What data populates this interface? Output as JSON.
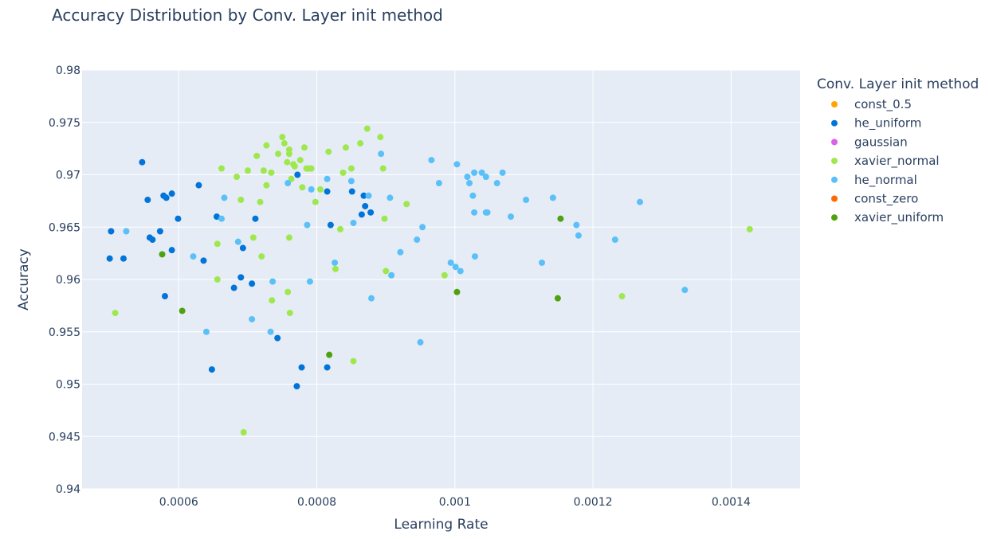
{
  "chart_data": {
    "type": "scatter",
    "title": "Accuracy Distribution by Conv. Layer init method",
    "xlabel": "Learning Rate",
    "ylabel": "Accuracy",
    "xlim": [
      0.00046,
      0.0015
    ],
    "ylim": [
      0.94,
      0.98
    ],
    "x_ticks": [
      0.0006,
      0.0008,
      0.001,
      0.0012,
      0.0014
    ],
    "x_tick_labels": [
      "0.0006",
      "0.0008",
      "0.001",
      "0.0012",
      "0.0014"
    ],
    "y_ticks": [
      0.94,
      0.945,
      0.95,
      0.955,
      0.96,
      0.965,
      0.97,
      0.975,
      0.98
    ],
    "y_tick_labels": [
      "0.94",
      "0.945",
      "0.95",
      "0.955",
      "0.96",
      "0.965",
      "0.97",
      "0.975",
      "0.98"
    ],
    "grid": true,
    "legend_title": "Conv. Layer init method",
    "legend_position": "right",
    "series": [
      {
        "name": "const_0.5",
        "color": "#FFA500",
        "points": []
      },
      {
        "name": "he_uniform",
        "color": "#0074D9",
        "points": [
          [
            0.000502,
            0.9646
          ],
          [
            0.0005,
            0.962
          ],
          [
            0.00052,
            0.962
          ],
          [
            0.000547,
            0.9712
          ],
          [
            0.000555,
            0.9676
          ],
          [
            0.000558,
            0.964
          ],
          [
            0.000562,
            0.9638
          ],
          [
            0.000573,
            0.9646
          ],
          [
            0.000578,
            0.968
          ],
          [
            0.000582,
            0.9678
          ],
          [
            0.00059,
            0.9682
          ],
          [
            0.00059,
            0.9628
          ],
          [
            0.00058,
            0.9584
          ],
          [
            0.000599,
            0.9658
          ],
          [
            0.000629,
            0.969
          ],
          [
            0.000636,
            0.9618
          ],
          [
            0.000655,
            0.966
          ],
          [
            0.000648,
            0.9514
          ],
          [
            0.00068,
            0.9592
          ],
          [
            0.00069,
            0.9602
          ],
          [
            0.000693,
            0.963
          ],
          [
            0.000706,
            0.9596
          ],
          [
            0.000711,
            0.9658
          ],
          [
            0.000743,
            0.9544
          ],
          [
            0.000772,
            0.97
          ],
          [
            0.000771,
            0.9498
          ],
          [
            0.000778,
            0.9516
          ],
          [
            0.000815,
            0.9684
          ],
          [
            0.000815,
            0.9516
          ],
          [
            0.00082,
            0.9652
          ],
          [
            0.000851,
            0.9684
          ],
          [
            0.000865,
            0.9662
          ],
          [
            0.000868,
            0.968
          ],
          [
            0.00087,
            0.967
          ],
          [
            0.000878,
            0.9664
          ]
        ]
      },
      {
        "name": "gaussian",
        "color": "#D962E8",
        "points": []
      },
      {
        "name": "xavier_normal",
        "color": "#9EE84E",
        "points": [
          [
            0.000508,
            0.9568
          ],
          [
            0.000656,
            0.9634
          ],
          [
            0.000656,
            0.96
          ],
          [
            0.000662,
            0.9706
          ],
          [
            0.000684,
            0.9698
          ],
          [
            0.00069,
            0.9676
          ],
          [
            0.000694,
            0.9454
          ],
          [
            0.0007,
            0.9704
          ],
          [
            0.000708,
            0.964
          ],
          [
            0.000713,
            0.9718
          ],
          [
            0.000718,
            0.9674
          ],
          [
            0.00072,
            0.9622
          ],
          [
            0.000723,
            0.9704
          ],
          [
            0.000727,
            0.9728
          ],
          [
            0.000727,
            0.969
          ],
          [
            0.000734,
            0.9702
          ],
          [
            0.000735,
            0.958
          ],
          [
            0.000744,
            0.972
          ],
          [
            0.00075,
            0.9736
          ],
          [
            0.000753,
            0.973
          ],
          [
            0.000757,
            0.9712
          ],
          [
            0.000758,
            0.9588
          ],
          [
            0.00076,
            0.972
          ],
          [
            0.00076,
            0.9724
          ],
          [
            0.00076,
            0.964
          ],
          [
            0.000761,
            0.9568
          ],
          [
            0.000763,
            0.9696
          ],
          [
            0.000766,
            0.971
          ],
          [
            0.000768,
            0.9708
          ],
          [
            0.000776,
            0.9714
          ],
          [
            0.000779,
            0.9688
          ],
          [
            0.000782,
            0.9726
          ],
          [
            0.000785,
            0.9706
          ],
          [
            0.000789,
            0.9706
          ],
          [
            0.000792,
            0.9706
          ],
          [
            0.000798,
            0.9674
          ],
          [
            0.000805,
            0.9686
          ],
          [
            0.000817,
            0.9722
          ],
          [
            0.000827,
            0.961
          ],
          [
            0.000834,
            0.9648
          ],
          [
            0.000838,
            0.9702
          ],
          [
            0.000842,
            0.9726
          ],
          [
            0.00085,
            0.9706
          ],
          [
            0.000853,
            0.9522
          ],
          [
            0.000863,
            0.973
          ],
          [
            0.000873,
            0.9744
          ],
          [
            0.000892,
            0.9736
          ],
          [
            0.000896,
            0.9706
          ],
          [
            0.000898,
            0.9658
          ],
          [
            0.0009,
            0.9608
          ],
          [
            0.00093,
            0.9672
          ],
          [
            0.000985,
            0.9604
          ],
          [
            0.001242,
            0.9584
          ],
          [
            0.001427,
            0.9648
          ]
        ]
      },
      {
        "name": "he_normal",
        "color": "#5BC0F8",
        "points": [
          [
            0.000524,
            0.9646
          ],
          [
            0.000621,
            0.9622
          ],
          [
            0.00064,
            0.955
          ],
          [
            0.000662,
            0.9658
          ],
          [
            0.000666,
            0.9678
          ],
          [
            0.000686,
            0.9636
          ],
          [
            0.000706,
            0.9562
          ],
          [
            0.000733,
            0.955
          ],
          [
            0.000736,
            0.9598
          ],
          [
            0.000758,
            0.9692
          ],
          [
            0.000786,
            0.9652
          ],
          [
            0.00079,
            0.9598
          ],
          [
            0.000792,
            0.9686
          ],
          [
            0.000815,
            0.9696
          ],
          [
            0.000826,
            0.9616
          ],
          [
            0.00085,
            0.9694
          ],
          [
            0.000853,
            0.9654
          ],
          [
            0.000875,
            0.968
          ],
          [
            0.000879,
            0.9582
          ],
          [
            0.000893,
            0.972
          ],
          [
            0.000906,
            0.9678
          ],
          [
            0.000908,
            0.9604
          ],
          [
            0.000921,
            0.9626
          ],
          [
            0.000945,
            0.9638
          ],
          [
            0.00095,
            0.954
          ],
          [
            0.000953,
            0.965
          ],
          [
            0.000966,
            0.9714
          ],
          [
            0.000977,
            0.9692
          ],
          [
            0.000994,
            0.9616
          ],
          [
            0.001001,
            0.9612
          ],
          [
            0.001003,
            0.971
          ],
          [
            0.001008,
            0.9608
          ],
          [
            0.001018,
            0.9698
          ],
          [
            0.001021,
            0.9692
          ],
          [
            0.001026,
            0.968
          ],
          [
            0.001028,
            0.9702
          ],
          [
            0.001028,
            0.9664
          ],
          [
            0.001029,
            0.9622
          ],
          [
            0.001039,
            0.9702
          ],
          [
            0.001045,
            0.9698
          ],
          [
            0.001045,
            0.9664
          ],
          [
            0.001047,
            0.9664
          ],
          [
            0.001061,
            0.9692
          ],
          [
            0.001069,
            0.9702
          ],
          [
            0.001081,
            0.966
          ],
          [
            0.001103,
            0.9676
          ],
          [
            0.001126,
            0.9616
          ],
          [
            0.001142,
            0.9678
          ],
          [
            0.001176,
            0.9652
          ],
          [
            0.001179,
            0.9642
          ],
          [
            0.001232,
            0.9638
          ],
          [
            0.001268,
            0.9674
          ],
          [
            0.001333,
            0.959
          ]
        ]
      },
      {
        "name": "const_zero",
        "color": "#FF6A00",
        "points": []
      },
      {
        "name": "xavier_uniform",
        "color": "#4FA20F",
        "points": [
          [
            0.000576,
            0.9624
          ],
          [
            0.000605,
            0.957
          ],
          [
            0.000818,
            0.9528
          ],
          [
            0.001003,
            0.9588
          ],
          [
            0.001149,
            0.9582
          ],
          [
            0.001153,
            0.9658
          ]
        ]
      }
    ]
  }
}
